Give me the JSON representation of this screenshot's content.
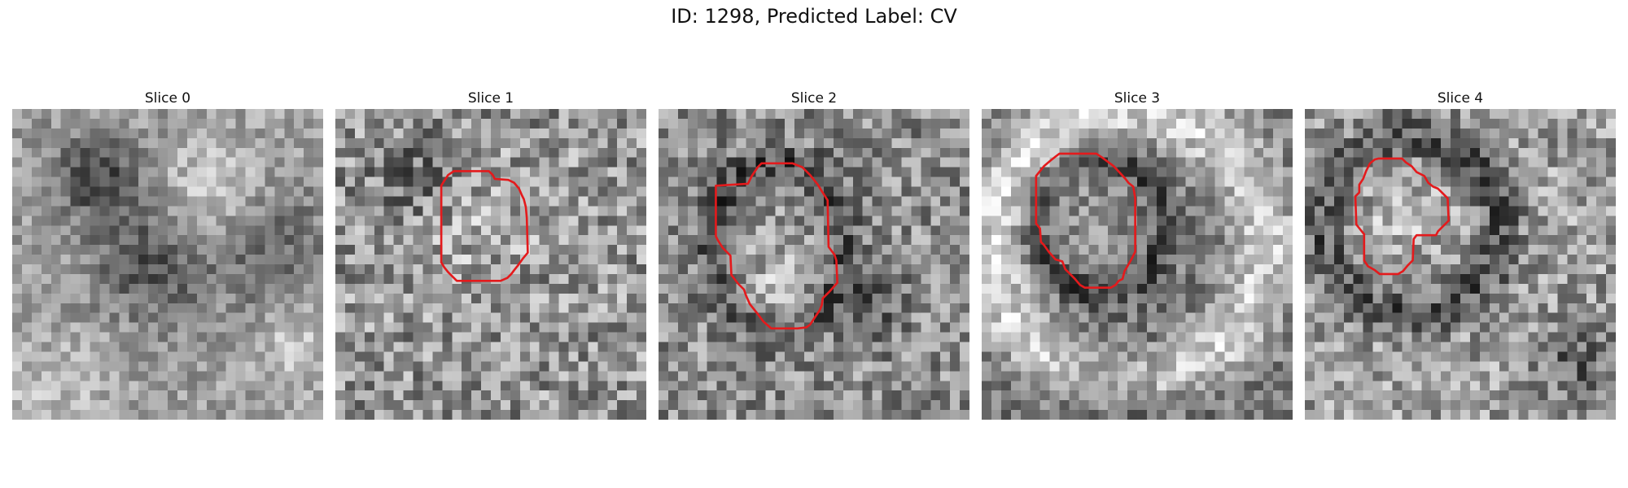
{
  "figure": {
    "title": "ID: 1298, Predicted Label: CV"
  },
  "panels": [
    {
      "title": "Slice 0",
      "image": "noisy-grayscale-micrograph-tile",
      "pattern": "diffuse-dark-band-with-bright-center-right",
      "contour": null
    },
    {
      "title": "Slice 1",
      "image": "noisy-grayscale-micrograph-tile",
      "pattern": "faint-vesicle",
      "contour": [
        [
          11.2,
          7.4
        ],
        [
          11.6,
          6.8
        ],
        [
          12.2,
          6.4
        ],
        [
          15.8,
          6.4
        ],
        [
          16.2,
          6.8
        ],
        [
          16.4,
          7.2
        ],
        [
          17.8,
          7.3
        ],
        [
          18.4,
          7.6
        ],
        [
          18.9,
          8.2
        ],
        [
          19.2,
          8.9
        ],
        [
          19.4,
          9.3
        ],
        [
          19.6,
          10.1
        ],
        [
          19.7,
          11.2
        ],
        [
          19.8,
          14.8
        ],
        [
          19.3,
          15.4
        ],
        [
          18.8,
          16.1
        ],
        [
          18.4,
          16.6
        ],
        [
          18.1,
          17.0
        ],
        [
          17.7,
          17.4
        ],
        [
          17.0,
          17.7
        ],
        [
          12.5,
          17.7
        ],
        [
          12.1,
          17.3
        ],
        [
          11.6,
          16.8
        ],
        [
          11.2,
          16.3
        ],
        [
          10.9,
          15.8
        ],
        [
          10.9,
          7.9
        ]
      ],
      "contour_color": "#e41a1c"
    },
    {
      "title": "Slice 2",
      "image": "noisy-grayscale-micrograph-tile",
      "pattern": "elongated-vesicle-with-dark-membrane",
      "contour": [
        [
          9.2,
          7.7
        ],
        [
          9.6,
          6.9
        ],
        [
          10.2,
          6.0
        ],
        [
          10.6,
          5.6
        ],
        [
          13.8,
          5.6
        ],
        [
          14.8,
          6.0
        ],
        [
          15.6,
          6.8
        ],
        [
          16.4,
          7.8
        ],
        [
          16.7,
          8.3
        ],
        [
          17.4,
          9.4
        ],
        [
          17.5,
          14.2
        ],
        [
          18.1,
          15.0
        ],
        [
          18.3,
          15.6
        ],
        [
          18.4,
          17.9
        ],
        [
          17.6,
          18.8
        ],
        [
          16.9,
          19.5
        ],
        [
          16.8,
          20.2
        ],
        [
          16.6,
          20.7
        ],
        [
          15.6,
          22.2
        ],
        [
          15.2,
          22.5
        ],
        [
          14.3,
          22.6
        ],
        [
          11.6,
          22.6
        ],
        [
          10.8,
          21.9
        ],
        [
          10.2,
          21.1
        ],
        [
          9.4,
          20.1
        ],
        [
          9.0,
          19.2
        ],
        [
          8.8,
          18.6
        ],
        [
          8.2,
          18.0
        ],
        [
          7.5,
          17.1
        ],
        [
          7.4,
          15.1
        ],
        [
          6.6,
          14.3
        ],
        [
          6.1,
          13.5
        ],
        [
          5.9,
          13.1
        ],
        [
          5.9,
          7.9
        ]
      ],
      "contour_color": "#e41a1c"
    },
    {
      "title": "Slice 3",
      "image": "noisy-grayscale-micrograph-tile",
      "pattern": "vesicle-inside-bright-ring",
      "contour": [
        [
          5.6,
          6.9
        ],
        [
          6.4,
          5.9
        ],
        [
          7.1,
          5.3
        ],
        [
          7.6,
          4.9
        ],
        [
          8.0,
          4.6
        ],
        [
          11.8,
          4.6
        ],
        [
          12.4,
          5.0
        ],
        [
          13.6,
          5.9
        ],
        [
          14.8,
          7.2
        ],
        [
          15.1,
          7.6
        ],
        [
          15.6,
          8.0
        ],
        [
          15.8,
          9.2
        ],
        [
          15.8,
          14.7
        ],
        [
          15.4,
          15.5
        ],
        [
          15.0,
          16.2
        ],
        [
          14.7,
          16.7
        ],
        [
          14.5,
          17.5
        ],
        [
          14.1,
          17.7
        ],
        [
          13.8,
          18.1
        ],
        [
          13.3,
          18.4
        ],
        [
          10.6,
          18.4
        ],
        [
          10.1,
          18.1
        ],
        [
          9.6,
          17.5
        ],
        [
          9.0,
          16.9
        ],
        [
          8.6,
          16.5
        ],
        [
          8.3,
          15.7
        ],
        [
          7.6,
          15.5
        ],
        [
          6.9,
          14.7
        ],
        [
          6.4,
          14.0
        ],
        [
          6.1,
          13.7
        ],
        [
          6.0,
          12.3
        ],
        [
          5.6,
          11.8
        ]
      ],
      "contour_color": "#e41a1c"
    },
    {
      "title": "Slice 4",
      "image": "noisy-grayscale-micrograph-tile",
      "pattern": "vesicle-inside-dark-ring",
      "contour": [
        [
          5.6,
          7.8
        ],
        [
          6.0,
          7.2
        ],
        [
          6.3,
          6.4
        ],
        [
          6.7,
          5.6
        ],
        [
          7.2,
          5.2
        ],
        [
          7.6,
          5.1
        ],
        [
          10.0,
          5.1
        ],
        [
          10.4,
          5.5
        ],
        [
          11.0,
          5.9
        ],
        [
          11.5,
          6.5
        ],
        [
          12.3,
          6.9
        ],
        [
          12.7,
          7.6
        ],
        [
          13.2,
          8.0
        ],
        [
          13.7,
          8.2
        ],
        [
          14.2,
          8.7
        ],
        [
          14.7,
          9.2
        ],
        [
          14.8,
          11.5
        ],
        [
          14.2,
          12.1
        ],
        [
          13.7,
          12.6
        ],
        [
          13.5,
          13.0
        ],
        [
          11.5,
          13.0
        ],
        [
          11.2,
          13.4
        ],
        [
          11.1,
          15.6
        ],
        [
          10.6,
          16.1
        ],
        [
          10.1,
          16.7
        ],
        [
          9.6,
          17.0
        ],
        [
          7.7,
          17.0
        ],
        [
          7.2,
          16.6
        ],
        [
          6.5,
          16.2
        ],
        [
          6.1,
          15.6
        ],
        [
          6.1,
          12.9
        ],
        [
          5.7,
          12.4
        ],
        [
          5.3,
          11.9
        ],
        [
          5.2,
          9.0
        ],
        [
          5.6,
          8.6
        ]
      ],
      "contour_color": "#e41a1c"
    }
  ]
}
